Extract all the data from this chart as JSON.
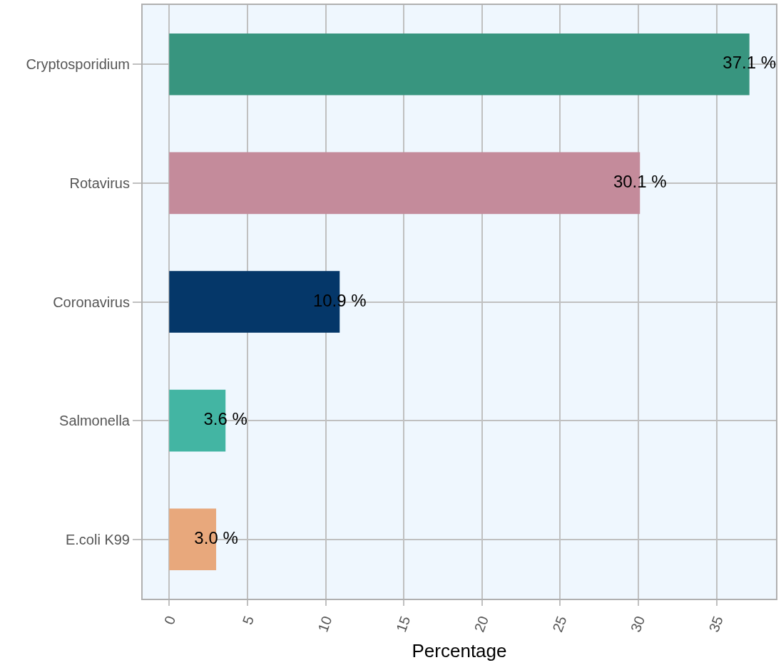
{
  "chart_data": {
    "type": "bar",
    "orientation": "horizontal",
    "xlabel": "Percentage",
    "categories": [
      "Cryptosporidium",
      "Rotavirus",
      "Coronavirus",
      "Salmonella",
      "E.coli K99"
    ],
    "values": [
      37.1,
      30.1,
      10.9,
      3.6,
      3.0
    ],
    "colors": [
      "#38957f",
      "#c48b9b",
      "#053769",
      "#43b5a3",
      "#e8a87c"
    ],
    "value_labels": [
      "37.1 %",
      "30.1 %",
      "10.9 %",
      "3.6 %",
      "3.0 %"
    ],
    "xlim": [
      -1.7,
      38.8
    ],
    "xticks": [
      0,
      5,
      10,
      15,
      20,
      25,
      30,
      35
    ],
    "grid": true
  }
}
